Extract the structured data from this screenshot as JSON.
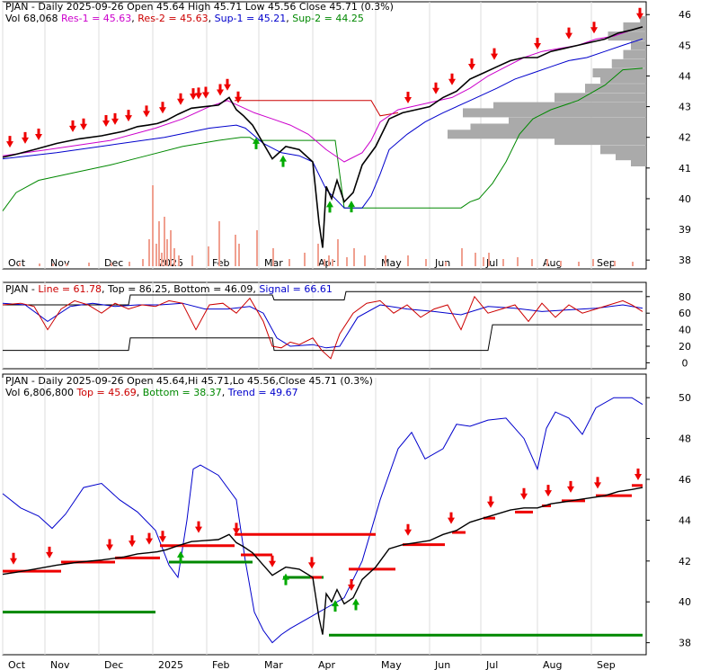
{
  "colors": {
    "up": "#00aa00",
    "down": "#ee0000",
    "res1": "#cc00cc",
    "res2": "#cc0000",
    "sup1": "#0000cc",
    "sup2": "#008800",
    "line": "#cc0000",
    "signal": "#0000cc",
    "volume": "#f0a090",
    "profile": "#aaaaaa"
  },
  "months": [
    "Oct",
    "Nov",
    "Dec",
    "2025",
    "Feb",
    "Mar",
    "Apr",
    "May",
    "Jun",
    "Jul",
    "Aug",
    "Sep"
  ],
  "chart_data": [
    {
      "type": "line",
      "panel": "price",
      "header": {
        "symbol": "PJAN",
        "line1": " - Daily 2025-09-26 Open 45.64  High 45.71  Low 45.56  Close 45.71 (0.3%)",
        "vol": "Vol 68,068",
        "res1": "Res-1 = 45.63",
        "res2": "Res-2 = 45.63",
        "sup1": "Sup-1 = 45.21",
        "sup2": "Sup-2 = 44.25"
      },
      "yticks": [
        "46",
        "45",
        "44",
        "43",
        "42",
        "41",
        "40",
        "39",
        "38"
      ],
      "ylim": [
        37.8,
        46.3
      ],
      "close": {
        "x": [
          0,
          15,
          35,
          60,
          85,
          110,
          135,
          150,
          162,
          172,
          182,
          195,
          210,
          225,
          240,
          252,
          260,
          268,
          278,
          290,
          300,
          315,
          330,
          345,
          352,
          356,
          360,
          366,
          372,
          380,
          390,
          400,
          415,
          430,
          445,
          460,
          475,
          490,
          505,
          520,
          535,
          550,
          565,
          580,
          595,
          610,
          625,
          640,
          655,
          670,
          685,
          700,
          712
        ],
        "value": [
          41.35,
          41.45,
          41.6,
          41.8,
          41.95,
          42.05,
          42.2,
          42.35,
          42.4,
          42.45,
          42.55,
          42.75,
          42.95,
          43.0,
          43.05,
          43.3,
          42.9,
          42.7,
          42.4,
          41.8,
          41.3,
          41.7,
          41.6,
          41.2,
          39.2,
          38.4,
          40.4,
          40.0,
          40.6,
          39.9,
          40.2,
          41.1,
          41.7,
          42.6,
          42.8,
          42.9,
          43.0,
          43.3,
          43.5,
          43.9,
          44.1,
          44.3,
          44.5,
          44.6,
          44.6,
          44.8,
          44.9,
          45.0,
          45.1,
          45.2,
          45.4,
          45.5,
          45.6
        ]
      },
      "res_line": {
        "x": [
          0,
          50,
          120,
          170,
          200,
          230,
          250,
          265,
          280,
          300,
          320,
          340,
          360,
          380,
          400,
          410,
          420,
          440,
          470,
          500,
          520,
          540,
          560,
          580,
          600,
          620,
          640,
          660,
          680,
          700,
          712
        ],
        "value": [
          41.4,
          41.6,
          41.9,
          42.3,
          42.6,
          43.0,
          43.2,
          43.0,
          42.8,
          42.6,
          42.4,
          42.1,
          41.6,
          41.2,
          41.5,
          41.9,
          42.5,
          42.9,
          43.1,
          43.3,
          43.6,
          44.0,
          44.3,
          44.6,
          44.8,
          44.9,
          45.0,
          45.2,
          45.3,
          45.5,
          45.6
        ]
      },
      "resistance2": {
        "x": [
          258,
          410,
          420,
          440
        ],
        "value": [
          43.2,
          43.2,
          42.7,
          42.8
        ]
      },
      "sup_line": {
        "x": [
          0,
          60,
          120,
          180,
          230,
          260,
          270,
          290,
          310,
          330,
          345,
          360,
          380,
          400,
          410,
          420,
          430,
          450,
          470,
          490,
          520,
          550,
          570,
          590,
          610,
          630,
          650,
          670,
          690,
          712
        ],
        "value": [
          41.3,
          41.5,
          41.75,
          42.0,
          42.3,
          42.4,
          42.3,
          41.8,
          41.5,
          41.4,
          41.2,
          40.3,
          39.7,
          39.7,
          40.1,
          40.8,
          41.6,
          42.1,
          42.5,
          42.8,
          43.2,
          43.6,
          43.9,
          44.1,
          44.3,
          44.5,
          44.6,
          44.8,
          45.0,
          45.21
        ]
      },
      "sup2_line": {
        "x": [
          0,
          15,
          40,
          80,
          120,
          160,
          200,
          240,
          265,
          275,
          280,
          370,
          380,
          460,
          510,
          520,
          530,
          545,
          560,
          575,
          590,
          610,
          640,
          670,
          690,
          712
        ],
        "value": [
          39.6,
          40.2,
          40.6,
          40.85,
          41.1,
          41.4,
          41.7,
          41.9,
          42.0,
          42.0,
          41.9,
          41.9,
          39.7,
          39.7,
          39.7,
          39.9,
          40.0,
          40.5,
          41.2,
          42.1,
          42.6,
          42.9,
          43.2,
          43.7,
          44.2,
          44.25
        ]
      },
      "down_arrows_x": [
        8,
        25,
        40,
        78,
        90,
        115,
        125,
        140,
        160,
        178,
        198,
        212,
        218,
        226,
        242,
        250,
        262,
        451,
        482,
        500,
        522,
        547,
        595,
        630,
        658,
        709
      ],
      "up_arrows_x": [
        282,
        312,
        364,
        388
      ],
      "volume_bars": {
        "x": [
          18,
          40,
          55,
          70,
          95,
          120,
          140,
          155,
          162,
          166,
          170,
          173,
          176,
          179,
          182,
          186,
          190,
          195,
          210,
          228,
          240,
          258,
          262,
          282,
          300,
          318,
          335,
          350,
          357,
          362,
          366,
          372,
          382,
          390,
          402,
          425,
          450,
          470,
          492,
          510,
          525,
          534,
          540,
          556,
          572,
          588,
          605,
          620,
          640,
          656,
          680,
          700
        ],
        "height": [
          4,
          3,
          3,
          3,
          4,
          4,
          5,
          8,
          30,
          90,
          25,
          50,
          15,
          55,
          30,
          40,
          20,
          12,
          12,
          22,
          50,
          35,
          25,
          40,
          20,
          8,
          15,
          25,
          8,
          12,
          8,
          30,
          10,
          20,
          12,
          12,
          12,
          8,
          5,
          20,
          15,
          10,
          15,
          8,
          10,
          8,
          8,
          6,
          5,
          8,
          6,
          5
        ]
      },
      "profile": {
        "price": [
          45.8,
          45.6,
          45.3,
          45.0,
          44.7,
          44.4,
          44.1,
          43.9,
          43.6,
          43.3,
          43.0,
          42.8,
          42.5,
          42.3,
          42.1,
          41.9,
          41.6,
          41.4,
          41.2
        ],
        "width": [
          8,
          30,
          50,
          20,
          30,
          45,
          70,
          60,
          80,
          120,
          200,
          240,
          180,
          230,
          260,
          120,
          60,
          40,
          20
        ]
      }
    },
    {
      "type": "line",
      "panel": "oscillator",
      "header": {
        "symbol": "PJAN",
        "line": "Line = 61.78",
        "top": "Top = 86.25",
        "bottom": "Bottom = 46.09",
        "signal": "Signal = 66.61"
      },
      "yticks": [
        "80",
        "60",
        "40",
        "20",
        "0"
      ],
      "ylim": [
        -5,
        95
      ],
      "line": {
        "x": [
          0,
          20,
          35,
          50,
          65,
          80,
          95,
          110,
          125,
          140,
          155,
          170,
          185,
          200,
          215,
          230,
          245,
          260,
          275,
          290,
          300,
          310,
          320,
          330,
          345,
          355,
          365,
          375,
          390,
          405,
          420,
          435,
          450,
          465,
          480,
          495,
          510,
          525,
          540,
          555,
          570,
          585,
          600,
          615,
          630,
          645,
          660,
          675,
          690,
          700,
          712
        ],
        "value": [
          70,
          72,
          68,
          40,
          65,
          75,
          70,
          60,
          72,
          65,
          70,
          68,
          75,
          72,
          40,
          70,
          72,
          60,
          78,
          50,
          20,
          18,
          25,
          22,
          30,
          15,
          5,
          35,
          60,
          72,
          75,
          60,
          70,
          55,
          65,
          70,
          40,
          80,
          60,
          65,
          70,
          50,
          72,
          55,
          70,
          60,
          65,
          70,
          75,
          70,
          62
        ]
      },
      "signal": {
        "x": [
          0,
          25,
          50,
          75,
          100,
          125,
          150,
          175,
          200,
          225,
          250,
          275,
          290,
          305,
          320,
          345,
          360,
          375,
          395,
          420,
          450,
          480,
          510,
          540,
          570,
          600,
          630,
          660,
          690,
          712
        ],
        "value": [
          72,
          70,
          50,
          68,
          72,
          68,
          70,
          70,
          72,
          65,
          65,
          68,
          60,
          30,
          20,
          22,
          18,
          20,
          55,
          70,
          65,
          62,
          58,
          68,
          66,
          62,
          64,
          66,
          70,
          66
        ]
      },
      "top_band": {
        "x": [
          0,
          140,
          142,
          300,
          302,
          380,
          382,
          700,
          712
        ],
        "value": [
          70,
          70,
          82,
          82,
          76,
          76,
          86,
          86,
          86
        ]
      },
      "bottom_band": {
        "x": [
          0,
          140,
          142,
          300,
          302,
          540,
          545,
          700,
          712
        ],
        "value": [
          15,
          15,
          30,
          30,
          15,
          15,
          46,
          46,
          46
        ]
      }
    },
    {
      "type": "line",
      "panel": "trend",
      "header": {
        "symbol": "PJAN",
        "line1": " - Daily 2025-09-26 Open 45.64,Hi 45.71,Lo 45.56,Close 45.71 (0.3%)",
        "vol": "Vol 6,806,800",
        "top": "Top = 45.69",
        "bottom": "Bottom = 38.37",
        "trend": "Trend = 49.67"
      },
      "yticks": [
        "50",
        "48",
        "46",
        "44",
        "42",
        "40",
        "38"
      ],
      "ylim": [
        37.5,
        50.8
      ],
      "close": {
        "x": [
          0,
          15,
          35,
          60,
          85,
          110,
          135,
          150,
          162,
          172,
          182,
          195,
          210,
          225,
          240,
          252,
          260,
          268,
          278,
          290,
          300,
          315,
          330,
          345,
          352,
          356,
          360,
          366,
          372,
          380,
          390,
          400,
          415,
          430,
          445,
          460,
          475,
          490,
          505,
          520,
          535,
          550,
          565,
          580,
          595,
          610,
          625,
          640,
          655,
          670,
          685,
          700,
          712
        ],
        "value": [
          41.35,
          41.45,
          41.6,
          41.8,
          41.95,
          42.05,
          42.2,
          42.35,
          42.4,
          42.45,
          42.55,
          42.75,
          42.95,
          43.0,
          43.05,
          43.3,
          42.9,
          42.7,
          42.4,
          41.8,
          41.3,
          41.7,
          41.6,
          41.2,
          39.2,
          38.4,
          40.4,
          40.0,
          40.6,
          39.9,
          40.2,
          41.1,
          41.7,
          42.6,
          42.8,
          42.9,
          43.0,
          43.3,
          43.5,
          43.9,
          44.1,
          44.3,
          44.5,
          44.6,
          44.6,
          44.8,
          44.9,
          45.0,
          45.1,
          45.2,
          45.4,
          45.5,
          45.6
        ]
      },
      "trend_line": {
        "x": [
          0,
          20,
          40,
          55,
          70,
          90,
          110,
          130,
          150,
          170,
          185,
          195,
          205,
          212,
          220,
          240,
          260,
          270,
          280,
          290,
          300,
          310,
          320,
          340,
          360,
          380,
          400,
          420,
          440,
          455,
          470,
          490,
          505,
          520,
          540,
          560,
          580,
          595,
          605,
          615,
          630,
          645,
          660,
          680,
          700,
          712
        ],
        "value": [
          45.3,
          44.6,
          44.2,
          43.6,
          44.3,
          45.6,
          45.8,
          45.0,
          44.4,
          43.5,
          41.8,
          41.2,
          44.0,
          46.5,
          46.7,
          46.2,
          45.0,
          42.0,
          39.5,
          38.6,
          38.0,
          38.4,
          38.7,
          39.2,
          39.7,
          40.2,
          42.0,
          45.0,
          47.5,
          48.3,
          47.0,
          47.5,
          48.7,
          48.6,
          48.9,
          49.0,
          48.0,
          46.5,
          48.5,
          49.3,
          49.0,
          48.2,
          49.5,
          50.0,
          50.0,
          49.67
        ]
      },
      "red_segments": [
        {
          "x1": 0,
          "x2": 65,
          "value": 41.5
        },
        {
          "x1": 65,
          "x2": 125,
          "value": 41.95
        },
        {
          "x1": 125,
          "x2": 175,
          "value": 42.15
        },
        {
          "x1": 175,
          "x2": 258,
          "value": 42.75
        },
        {
          "x1": 258,
          "x2": 415,
          "value": 43.3
        },
        {
          "x1": 265,
          "x2": 300,
          "value": 42.3
        },
        {
          "x1": 342,
          "x2": 355,
          "value": 41.2
        },
        {
          "x1": 385,
          "x2": 437,
          "value": 41.6
        },
        {
          "x1": 445,
          "x2": 492,
          "value": 42.8
        },
        {
          "x1": 500,
          "x2": 515,
          "value": 43.4
        },
        {
          "x1": 535,
          "x2": 548,
          "value": 44.1
        },
        {
          "x1": 570,
          "x2": 590,
          "value": 44.4
        },
        {
          "x1": 600,
          "x2": 610,
          "value": 44.7
        },
        {
          "x1": 622,
          "x2": 648,
          "value": 44.95
        },
        {
          "x1": 660,
          "x2": 700,
          "value": 45.2
        },
        {
          "x1": 700,
          "x2": 712,
          "value": 45.7
        }
      ],
      "green_segments": [
        {
          "x1": 0,
          "x2": 170,
          "value": 39.5
        },
        {
          "x1": 185,
          "x2": 278,
          "value": 41.95
        },
        {
          "x1": 312,
          "x2": 357,
          "value": 41.2
        },
        {
          "x1": 363,
          "x2": 712,
          "value": 38.37
        }
      ],
      "down_arrows_x": [
        12,
        52,
        119,
        144,
        163,
        178,
        218,
        260,
        300,
        344,
        388,
        451,
        499,
        543,
        580,
        607,
        632,
        662,
        707
      ],
      "up_arrows_x": [
        198,
        315,
        370,
        393
      ]
    }
  ]
}
